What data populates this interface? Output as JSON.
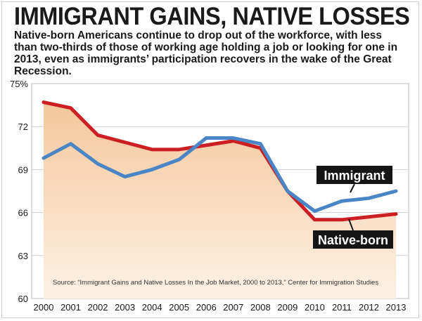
{
  "title": "IMMIGRANT GAINS, NATIVE LOSSES",
  "subtitle": "Native-born Americans continue to drop out of the workforce, with less than two-thirds of those of working age holding a job or looking for one in 2013, even as immigrants’ participation recovers in the wake of the Great Recession.",
  "source": "Source: “Immigrant Gains and Native Losses In the Job Market, 2000 to 2013,” Center for Immigration Studies",
  "colors": {
    "native": "#cc1f24",
    "immigrant": "#4a86c5",
    "fill_top": "#f4c79c",
    "fill_bottom": "#fdf1e4",
    "label_bg": "#151515"
  },
  "chart_data": {
    "type": "line",
    "x": [
      2000,
      2001,
      2002,
      2003,
      2004,
      2005,
      2006,
      2007,
      2008,
      2009,
      2010,
      2011,
      2012,
      2013
    ],
    "ylim": [
      60,
      75
    ],
    "yticks": [
      60,
      63,
      66,
      69,
      72,
      75
    ],
    "ytick_labels": [
      "60",
      "63",
      "66",
      "69",
      "72",
      "75%"
    ],
    "grid": true,
    "series": [
      {
        "name": "Native-born",
        "values": [
          73.7,
          73.3,
          71.4,
          70.9,
          70.4,
          70.4,
          70.7,
          71.0,
          70.5,
          67.5,
          65.5,
          65.5,
          65.7,
          65.9
        ]
      },
      {
        "name": "Immigrant",
        "values": [
          69.8,
          70.8,
          69.4,
          68.5,
          69.0,
          69.7,
          71.2,
          71.2,
          70.8,
          67.5,
          66.1,
          66.8,
          67.0,
          67.5
        ]
      }
    ]
  }
}
